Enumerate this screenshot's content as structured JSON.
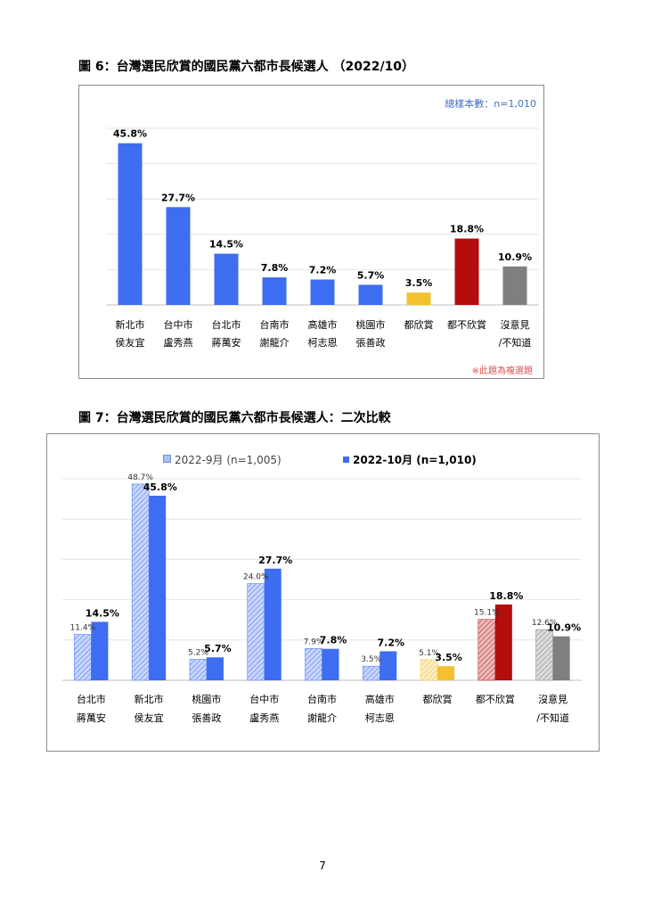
{
  "figure6": {
    "title": "圖 6：台灣選民欣賞的國民黨六都市長候選人 （2022/10）",
    "sample_note": "總樣本數：n=1,010",
    "multi_note": "※此題為複選題",
    "chart_data": {
      "type": "bar",
      "categories": [
        [
          "新北市",
          "侯友宜"
        ],
        [
          "台中市",
          "盧秀燕"
        ],
        [
          "台北市",
          "蔣萬安"
        ],
        [
          "台南市",
          "謝龍介"
        ],
        [
          "高雄市",
          "柯志恩"
        ],
        [
          "桃園市",
          "張善政"
        ],
        [
          "都欣賞",
          ""
        ],
        [
          "都不欣賞",
          ""
        ],
        [
          "沒意見",
          "/不知道"
        ]
      ],
      "values": [
        45.8,
        27.7,
        14.5,
        7.8,
        7.2,
        5.7,
        3.5,
        18.8,
        10.9
      ],
      "labels": [
        "45.8%",
        "27.7%",
        "14.5%",
        "7.8%",
        "7.2%",
        "5.7%",
        "3.5%",
        "18.8%",
        "10.9%"
      ],
      "colors": [
        "#3d6ef2",
        "#3d6ef2",
        "#3d6ef2",
        "#3d6ef2",
        "#3d6ef2",
        "#3d6ef2",
        "#f2c12e",
        "#b30d0d",
        "#7f7f7f"
      ],
      "ylim": [
        0,
        50
      ],
      "grid": true
    }
  },
  "figure7": {
    "title": "圖 7：台灣選民欣賞的國民黨六都市長候選人：二次比較",
    "chart_data": {
      "type": "bar",
      "categories": [
        [
          "台北市",
          "蔣萬安"
        ],
        [
          "新北市",
          "侯友宜"
        ],
        [
          "桃園市",
          "張善政"
        ],
        [
          "台中市",
          "盧秀燕"
        ],
        [
          "台南市",
          "謝龍介"
        ],
        [
          "高雄市",
          "柯志恩"
        ],
        [
          "都欣賞",
          ""
        ],
        [
          "都不欣賞",
          ""
        ],
        [
          "沒意見",
          "/不知道"
        ]
      ],
      "series": [
        {
          "name": "2022-9月 (n=1,005)",
          "values": [
            11.4,
            48.7,
            5.2,
            24.0,
            7.9,
            3.5,
            5.1,
            15.1,
            12.6
          ],
          "labels": [
            "11.4%",
            "48.7%",
            "5.2%",
            "24.0%",
            "7.9%",
            "3.5%",
            "5.1%",
            "15.1%",
            "12.6%"
          ]
        },
        {
          "name": "2022-10月 (n=1,010)",
          "values": [
            14.5,
            45.8,
            5.7,
            27.7,
            7.8,
            7.2,
            3.5,
            18.8,
            10.9
          ],
          "labels": [
            "14.5%",
            "45.8%",
            "5.7%",
            "27.7%",
            "7.8%",
            "7.2%",
            "3.5%",
            "18.8%",
            "10.9%"
          ]
        }
      ],
      "colors": [
        "#3d6ef2",
        "#3d6ef2",
        "#3d6ef2",
        "#3d6ef2",
        "#3d6ef2",
        "#3d6ef2",
        "#f2c12e",
        "#b30d0d",
        "#7f7f7f"
      ],
      "prev_series_style": "hatched",
      "legend": "top",
      "ylim": [
        0,
        50
      ],
      "grid": true
    }
  },
  "page_number": "7"
}
